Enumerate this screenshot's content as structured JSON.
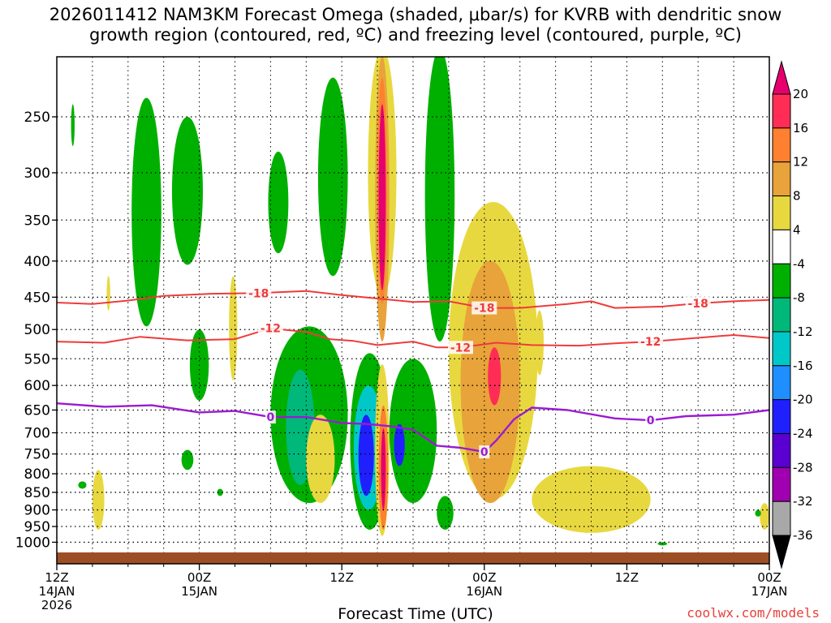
{
  "title": {
    "line1": "2026011412 NAM3KM Forecast Omega (shaded, μbar/s) for KVRB with dendritic snow",
    "line2": "growth region (contoured, red, ºC) and freezing level (contoured, purple, ºC)"
  },
  "credit": "coolwx.com/models",
  "chart_data": {
    "type": "heatmap",
    "title": "2026011412 NAM3KM Forecast Omega (shaded, μbar/s) for KVRB with dendritic snow growth region (contoured, red, ºC) and freezing level (contoured, purple, ºC)",
    "xlabel": "Forecast Time (UTC)",
    "ylabel": "",
    "x_ticks": [
      {
        "hour": 0,
        "lines": [
          "12Z",
          "14JAN",
          "2026"
        ]
      },
      {
        "hour": 12,
        "lines": [
          "00Z",
          "15JAN"
        ]
      },
      {
        "hour": 24,
        "lines": [
          "12Z"
        ]
      },
      {
        "hour": 36,
        "lines": [
          "00Z",
          "16JAN"
        ]
      },
      {
        "hour": 48,
        "lines": [
          "12Z"
        ]
      },
      {
        "hour": 60,
        "lines": [
          "00Z",
          "17JAN"
        ]
      }
    ],
    "xlim_hours": [
      0,
      60
    ],
    "y_levels": [
      250,
      300,
      350,
      400,
      450,
      500,
      550,
      600,
      650,
      700,
      750,
      800,
      850,
      900,
      950,
      1000
    ],
    "ylim_mb": [
      1050,
      198
    ],
    "grid": true,
    "colorbar": {
      "ticks": [
        20,
        16,
        12,
        8,
        4,
        -4,
        -8,
        -12,
        -16,
        -20,
        -24,
        -28,
        -32,
        -36
      ],
      "colors": [
        "#ff2d55",
        "#ff8030",
        "#e8a33a",
        "#e8d840",
        "#ffffff",
        "#00b000",
        "#00b87a",
        "#00c8c8",
        "#1f8fff",
        "#2020ff",
        "#5a00d0",
        "#a000b0",
        "#a8a8a8"
      ],
      "top_color": "#e6006e",
      "bottom_color": "#000000"
    },
    "contours": {
      "dgz_red": [
        {
          "label": "-18",
          "color": "#ee3b3b",
          "points": [
            [
              0,
              458
            ],
            [
              3,
              460
            ],
            [
              6,
              455
            ],
            [
              9,
              448
            ],
            [
              13,
              445
            ],
            [
              17,
              444
            ],
            [
              21,
              441
            ],
            [
              24,
              447
            ],
            [
              27,
              452
            ],
            [
              30,
              457
            ],
            [
              33,
              456
            ],
            [
              36,
              466
            ],
            [
              39,
              466
            ],
            [
              43,
              460
            ],
            [
              45,
              456
            ],
            [
              47,
              466
            ],
            [
              51,
              464
            ],
            [
              54,
              459
            ],
            [
              57,
              456
            ],
            [
              60,
              454
            ]
          ]
        },
        {
          "label": "-12",
          "color": "#ee3b3b",
          "points": [
            [
              0,
              520
            ],
            [
              4,
              522
            ],
            [
              7,
              512
            ],
            [
              11,
              518
            ],
            [
              15,
              516
            ],
            [
              18,
              498
            ],
            [
              21,
              504
            ],
            [
              23,
              516
            ],
            [
              25,
              519
            ],
            [
              27,
              526
            ],
            [
              30,
              520
            ],
            [
              32,
              530
            ],
            [
              34,
              530
            ],
            [
              37,
              522
            ],
            [
              40,
              526
            ],
            [
              44,
              527
            ],
            [
              47,
              523
            ],
            [
              50,
              520
            ],
            [
              55,
              512
            ],
            [
              57,
              509
            ],
            [
              60,
              514
            ]
          ]
        }
      ],
      "freezing_purple": [
        {
          "label": "0",
          "color": "#9b1bd0",
          "points": [
            [
              0,
              636
            ],
            [
              4,
              643
            ],
            [
              8,
              640
            ],
            [
              12,
              655
            ],
            [
              15,
              652
            ],
            [
              18,
              665
            ],
            [
              21,
              665
            ],
            [
              24,
              678
            ],
            [
              26,
              680
            ],
            [
              28,
              685
            ],
            [
              30,
              693
            ],
            [
              32,
              730
            ],
            [
              34,
              735
            ],
            [
              36,
              745
            ],
            [
              37,
              718
            ],
            [
              38.5,
              670
            ],
            [
              40,
              645
            ],
            [
              43,
              650
            ],
            [
              47,
              668
            ],
            [
              50,
              672
            ],
            [
              53,
              663
            ],
            [
              57,
              660
            ],
            [
              60,
              650
            ]
          ]
        }
      ]
    },
    "omega_regions": [
      {
        "value": -6,
        "hours": [
          1.2,
          1.5
        ],
        "mb": [
          240,
          275
        ]
      },
      {
        "value": -6,
        "hours": [
          6.3,
          8.8
        ],
        "mb": [
          235,
          495
        ]
      },
      {
        "value": -6,
        "hours": [
          9.7,
          12.3
        ],
        "mb": [
          250,
          405
        ]
      },
      {
        "value": -6,
        "hours": [
          11.2,
          12.8
        ],
        "mb": [
          500,
          630
        ]
      },
      {
        "value": -6,
        "hours": [
          17.8,
          19.5
        ],
        "mb": [
          280,
          390
        ]
      },
      {
        "value": -6,
        "hours": [
          22,
          24.5
        ],
        "mb": [
          220,
          420
        ]
      },
      {
        "value": -6,
        "hours": [
          18,
          24.5
        ],
        "mb": [
          495,
          880
        ]
      },
      {
        "value": -10,
        "hours": [
          19.3,
          21.7
        ],
        "mb": [
          570,
          830
        ]
      },
      {
        "value": -6,
        "hours": [
          24.7,
          28
        ],
        "mb": [
          540,
          960
        ]
      },
      {
        "value": -12,
        "hours": [
          25,
          27.5
        ],
        "mb": [
          600,
          900
        ]
      },
      {
        "value": -22,
        "hours": [
          25.4,
          26.7
        ],
        "mb": [
          660,
          860
        ]
      },
      {
        "value": -6,
        "hours": [
          28,
          32
        ],
        "mb": [
          550,
          880
        ]
      },
      {
        "value": -22,
        "hours": [
          28.4,
          29.3
        ],
        "mb": [
          680,
          780
        ]
      },
      {
        "value": -6,
        "hours": [
          31,
          33.5
        ],
        "mb": [
          200,
          520
        ]
      },
      {
        "value": -6,
        "hours": [
          32,
          33.4
        ],
        "mb": [
          860,
          960
        ]
      },
      {
        "value": 4,
        "hours": [
          26.2,
          28.6
        ],
        "mb": [
          200,
          450
        ]
      },
      {
        "value": 10,
        "hours": [
          26.8,
          28
        ],
        "mb": [
          205,
          520
        ]
      },
      {
        "value": 14,
        "hours": [
          27,
          27.8
        ],
        "mb": [
          220,
          460
        ]
      },
      {
        "value": 20,
        "hours": [
          27.1,
          27.7
        ],
        "mb": [
          240,
          440
        ]
      },
      {
        "value": 4,
        "hours": [
          26.8,
          28
        ],
        "mb": [
          560,
          980
        ]
      },
      {
        "value": 12,
        "hours": [
          27.1,
          27.9
        ],
        "mb": [
          640,
          960
        ]
      },
      {
        "value": 20,
        "hours": [
          27.3,
          27.7
        ],
        "mb": [
          690,
          900
        ]
      },
      {
        "value": 4,
        "hours": [
          33,
          40.5
        ],
        "mb": [
          330,
          870
        ]
      },
      {
        "value": 10,
        "hours": [
          34,
          39
        ],
        "mb": [
          400,
          880
        ]
      },
      {
        "value": 16,
        "hours": [
          36.3,
          37.4
        ],
        "mb": [
          530,
          640
        ]
      },
      {
        "value": 4,
        "hours": [
          40.3,
          41
        ],
        "mb": [
          470,
          580
        ]
      },
      {
        "value": 4,
        "hours": [
          40,
          50
        ],
        "mb": [
          780,
          970
        ]
      },
      {
        "value": 4,
        "hours": [
          14.5,
          15.2
        ],
        "mb": [
          420,
          590
        ]
      },
      {
        "value": 4,
        "hours": [
          21,
          23.4
        ],
        "mb": [
          660,
          880
        ]
      },
      {
        "value": 4,
        "hours": [
          3,
          4
        ],
        "mb": [
          790,
          960
        ]
      },
      {
        "value": 4,
        "hours": [
          4.2,
          4.5
        ],
        "mb": [
          420,
          470
        ]
      },
      {
        "value": 4,
        "hours": [
          59.2,
          60
        ],
        "mb": [
          880,
          960
        ]
      },
      {
        "value": -6,
        "hours": [
          10.5,
          11.5
        ],
        "mb": [
          740,
          790
        ]
      },
      {
        "value": -6,
        "hours": [
          1.8,
          2.5
        ],
        "mb": [
          820,
          840
        ]
      },
      {
        "value": -6,
        "hours": [
          13.5,
          14
        ],
        "mb": [
          840,
          860
        ]
      },
      {
        "value": -6,
        "hours": [
          58.8,
          59.3
        ],
        "mb": [
          900,
          920
        ]
      },
      {
        "value": -6,
        "hours": [
          50.6,
          51.4
        ],
        "mb": [
          1000,
          1010
        ]
      }
    ],
    "terrain_color": "#9c4f24"
  }
}
